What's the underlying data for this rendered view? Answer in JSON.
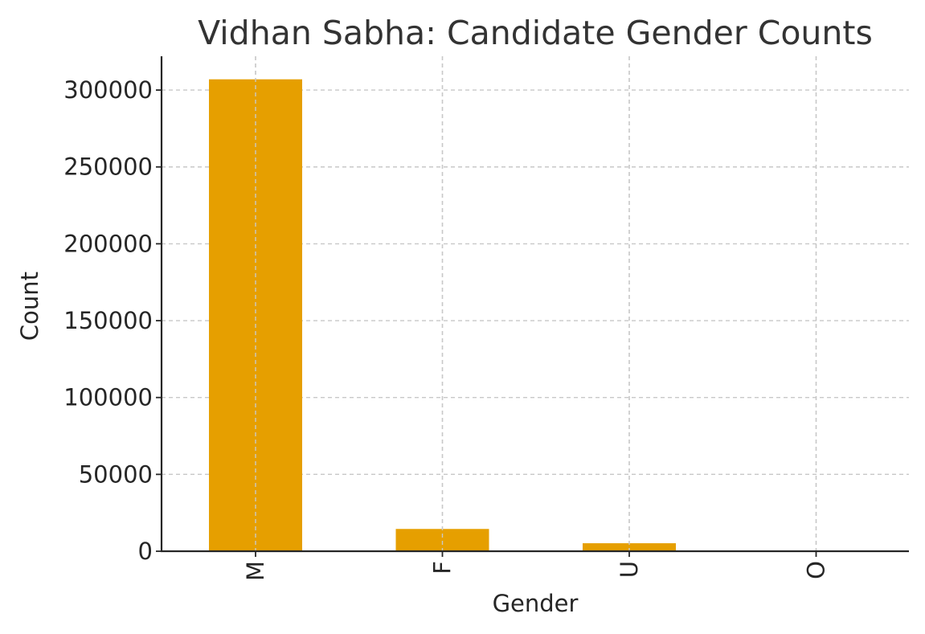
{
  "chart_data": {
    "type": "bar",
    "title": "Vidhan Sabha: Candidate Gender Counts",
    "xlabel": "Gender",
    "ylabel": "Count",
    "categories": [
      "M",
      "F",
      "U",
      "O"
    ],
    "values": [
      307000,
      14500,
      5200,
      150
    ],
    "ylim": [
      0,
      322000
    ],
    "yticks": [
      0,
      50000,
      100000,
      150000,
      200000,
      250000,
      300000
    ],
    "ytick_labels": [
      "0",
      "50000",
      "100000",
      "150000",
      "200000",
      "250000",
      "300000"
    ],
    "grid": true,
    "x_tick_rotation": "vertical",
    "colors": {
      "bar": "#E69F00",
      "grid": "#c8c8c8",
      "axis": "#262626",
      "title": "#333333"
    }
  }
}
